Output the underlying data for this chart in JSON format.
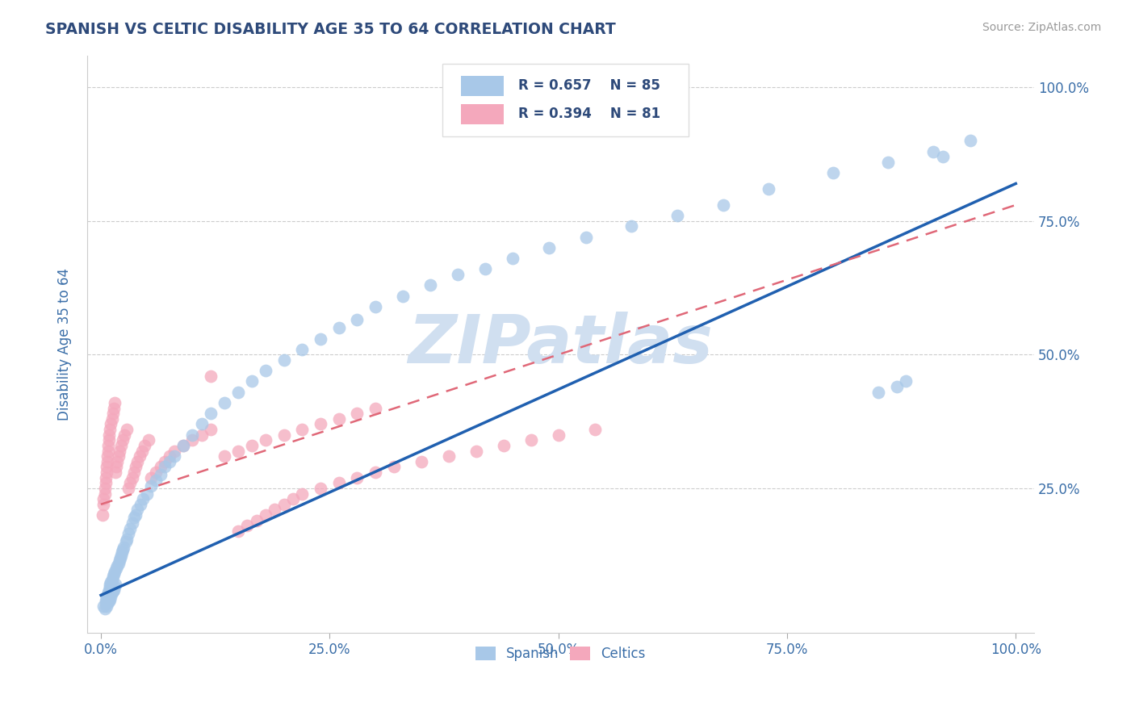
{
  "title": "SPANISH VS CELTIC DISABILITY AGE 35 TO 64 CORRELATION CHART",
  "source": "Source: ZipAtlas.com",
  "ylabel": "Disability Age 35 to 64",
  "xlim": [
    0.0,
    1.0
  ],
  "ylim": [
    0.0,
    1.0
  ],
  "xtick_labels": [
    "0.0%",
    "25.0%",
    "50.0%",
    "75.0%",
    "100.0%"
  ],
  "ytick_labels_right": [
    "",
    "25.0%",
    "50.0%",
    "75.0%",
    "100.0%"
  ],
  "spanish_R": 0.657,
  "spanish_N": 85,
  "celtics_R": 0.394,
  "celtics_N": 81,
  "spanish_color": "#a8c8e8",
  "celtics_color": "#f4a8bc",
  "spanish_line_color": "#2060b0",
  "celtics_line_color": "#e06878",
  "watermark_color": "#d0dff0",
  "title_color": "#2e4a7a",
  "axis_label_color": "#3a6ea8",
  "tick_color": "#3a6ea8",
  "source_color": "#999999",
  "spanish_x": [
    0.003,
    0.004,
    0.005,
    0.005,
    0.006,
    0.006,
    0.007,
    0.007,
    0.008,
    0.008,
    0.009,
    0.009,
    0.01,
    0.01,
    0.01,
    0.011,
    0.011,
    0.012,
    0.012,
    0.013,
    0.013,
    0.014,
    0.014,
    0.015,
    0.015,
    0.016,
    0.017,
    0.018,
    0.019,
    0.02,
    0.021,
    0.022,
    0.023,
    0.024,
    0.025,
    0.027,
    0.028,
    0.03,
    0.032,
    0.034,
    0.036,
    0.038,
    0.04,
    0.043,
    0.046,
    0.05,
    0.055,
    0.06,
    0.065,
    0.07,
    0.075,
    0.08,
    0.09,
    0.1,
    0.11,
    0.12,
    0.135,
    0.15,
    0.165,
    0.18,
    0.2,
    0.22,
    0.24,
    0.26,
    0.28,
    0.3,
    0.33,
    0.36,
    0.39,
    0.42,
    0.45,
    0.49,
    0.53,
    0.58,
    0.63,
    0.68,
    0.73,
    0.8,
    0.86,
    0.91,
    0.85,
    0.87,
    0.88,
    0.92,
    0.95
  ],
  "spanish_y": [
    0.03,
    0.025,
    0.035,
    0.04,
    0.03,
    0.045,
    0.035,
    0.05,
    0.04,
    0.055,
    0.038,
    0.06,
    0.042,
    0.065,
    0.07,
    0.048,
    0.075,
    0.055,
    0.08,
    0.058,
    0.085,
    0.06,
    0.09,
    0.065,
    0.095,
    0.07,
    0.1,
    0.105,
    0.11,
    0.115,
    0.12,
    0.125,
    0.13,
    0.135,
    0.14,
    0.15,
    0.155,
    0.165,
    0.175,
    0.185,
    0.195,
    0.2,
    0.21,
    0.22,
    0.23,
    0.24,
    0.255,
    0.265,
    0.275,
    0.29,
    0.3,
    0.31,
    0.33,
    0.35,
    0.37,
    0.39,
    0.41,
    0.43,
    0.45,
    0.47,
    0.49,
    0.51,
    0.53,
    0.55,
    0.565,
    0.59,
    0.61,
    0.63,
    0.65,
    0.66,
    0.68,
    0.7,
    0.72,
    0.74,
    0.76,
    0.78,
    0.81,
    0.84,
    0.86,
    0.88,
    0.43,
    0.44,
    0.45,
    0.87,
    0.9
  ],
  "celtics_x": [
    0.002,
    0.003,
    0.003,
    0.004,
    0.004,
    0.005,
    0.005,
    0.006,
    0.006,
    0.007,
    0.007,
    0.008,
    0.008,
    0.009,
    0.009,
    0.01,
    0.011,
    0.012,
    0.013,
    0.014,
    0.015,
    0.016,
    0.017,
    0.018,
    0.019,
    0.02,
    0.022,
    0.024,
    0.026,
    0.028,
    0.03,
    0.032,
    0.034,
    0.036,
    0.038,
    0.04,
    0.042,
    0.045,
    0.048,
    0.052,
    0.055,
    0.06,
    0.065,
    0.07,
    0.075,
    0.08,
    0.09,
    0.1,
    0.11,
    0.12,
    0.135,
    0.15,
    0.165,
    0.18,
    0.2,
    0.22,
    0.24,
    0.26,
    0.28,
    0.3,
    0.15,
    0.16,
    0.17,
    0.18,
    0.19,
    0.2,
    0.21,
    0.22,
    0.24,
    0.26,
    0.28,
    0.3,
    0.32,
    0.35,
    0.38,
    0.41,
    0.44,
    0.47,
    0.5,
    0.54,
    0.12
  ],
  "celtics_y": [
    0.2,
    0.22,
    0.23,
    0.24,
    0.25,
    0.26,
    0.27,
    0.28,
    0.29,
    0.3,
    0.31,
    0.32,
    0.33,
    0.34,
    0.35,
    0.36,
    0.37,
    0.38,
    0.39,
    0.4,
    0.41,
    0.28,
    0.29,
    0.3,
    0.31,
    0.32,
    0.33,
    0.34,
    0.35,
    0.36,
    0.25,
    0.26,
    0.27,
    0.28,
    0.29,
    0.3,
    0.31,
    0.32,
    0.33,
    0.34,
    0.27,
    0.28,
    0.29,
    0.3,
    0.31,
    0.32,
    0.33,
    0.34,
    0.35,
    0.36,
    0.31,
    0.32,
    0.33,
    0.34,
    0.35,
    0.36,
    0.37,
    0.38,
    0.39,
    0.4,
    0.17,
    0.18,
    0.19,
    0.2,
    0.21,
    0.22,
    0.23,
    0.24,
    0.25,
    0.26,
    0.27,
    0.28,
    0.29,
    0.3,
    0.31,
    0.32,
    0.33,
    0.34,
    0.35,
    0.36,
    0.46
  ],
  "sp_line_x": [
    0.0,
    1.0
  ],
  "sp_line_y": [
    0.05,
    0.82
  ],
  "ce_line_x": [
    0.0,
    1.0
  ],
  "ce_line_y": [
    0.22,
    0.78
  ]
}
